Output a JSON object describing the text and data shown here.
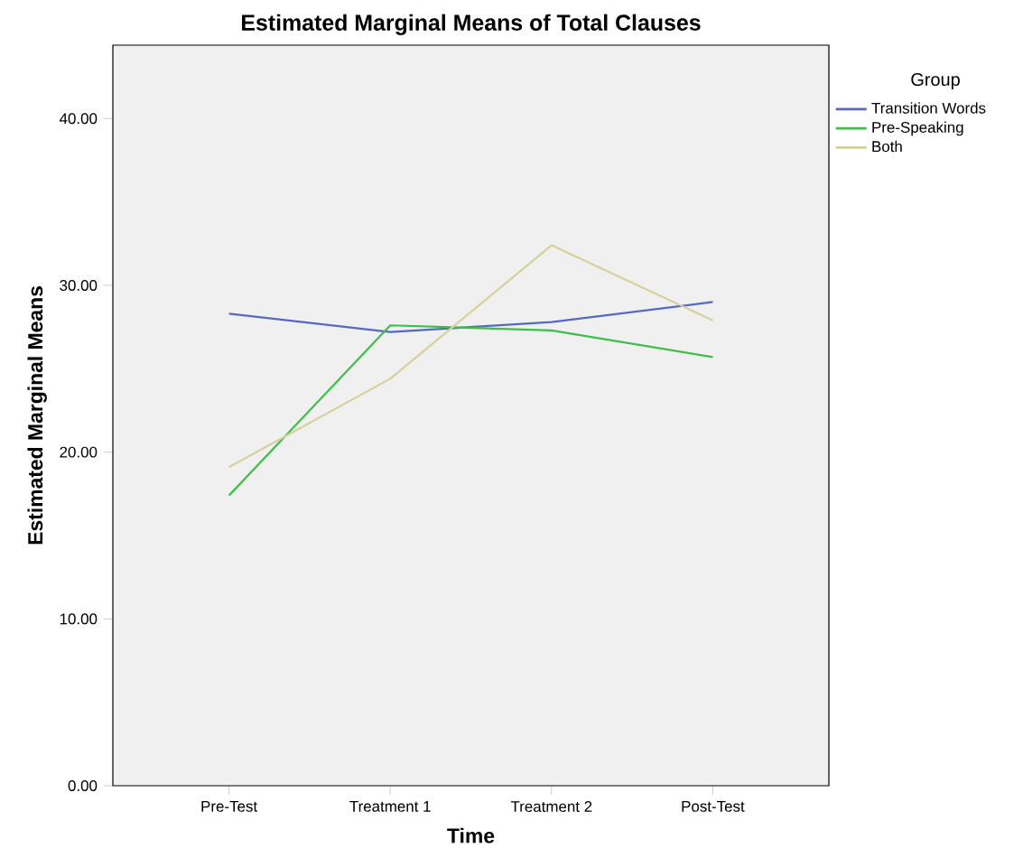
{
  "chart_data": {
    "type": "line",
    "title": "Estimated Marginal Means of Total Clauses",
    "xlabel": "Time",
    "ylabel": "Estimated Marginal Means",
    "legend_title": "Group",
    "categories": [
      "Pre-Test",
      "Treatment 1",
      "Treatment 2",
      "Post-Test"
    ],
    "series": [
      {
        "name": "Transition Words",
        "color": "#5468c4",
        "values": [
          28.3,
          27.2,
          27.8,
          29.0
        ]
      },
      {
        "name": "Pre-Speaking",
        "color": "#3cbf48",
        "values": [
          17.4,
          27.6,
          27.3,
          25.7
        ]
      },
      {
        "name": "Both",
        "color": "#d6d09a",
        "values": [
          19.1,
          24.4,
          32.4,
          27.9
        ]
      }
    ],
    "ylim": [
      0,
      44.4
    ],
    "yticks": [
      {
        "value": 0,
        "label": "0.00"
      },
      {
        "value": 10,
        "label": "10.00"
      },
      {
        "value": 20,
        "label": "20.00"
      },
      {
        "value": 30,
        "label": "30.00"
      },
      {
        "value": 40,
        "label": "40.00"
      }
    ],
    "legend": "top right",
    "grid": false,
    "marker": "none",
    "line_style": "solid"
  }
}
